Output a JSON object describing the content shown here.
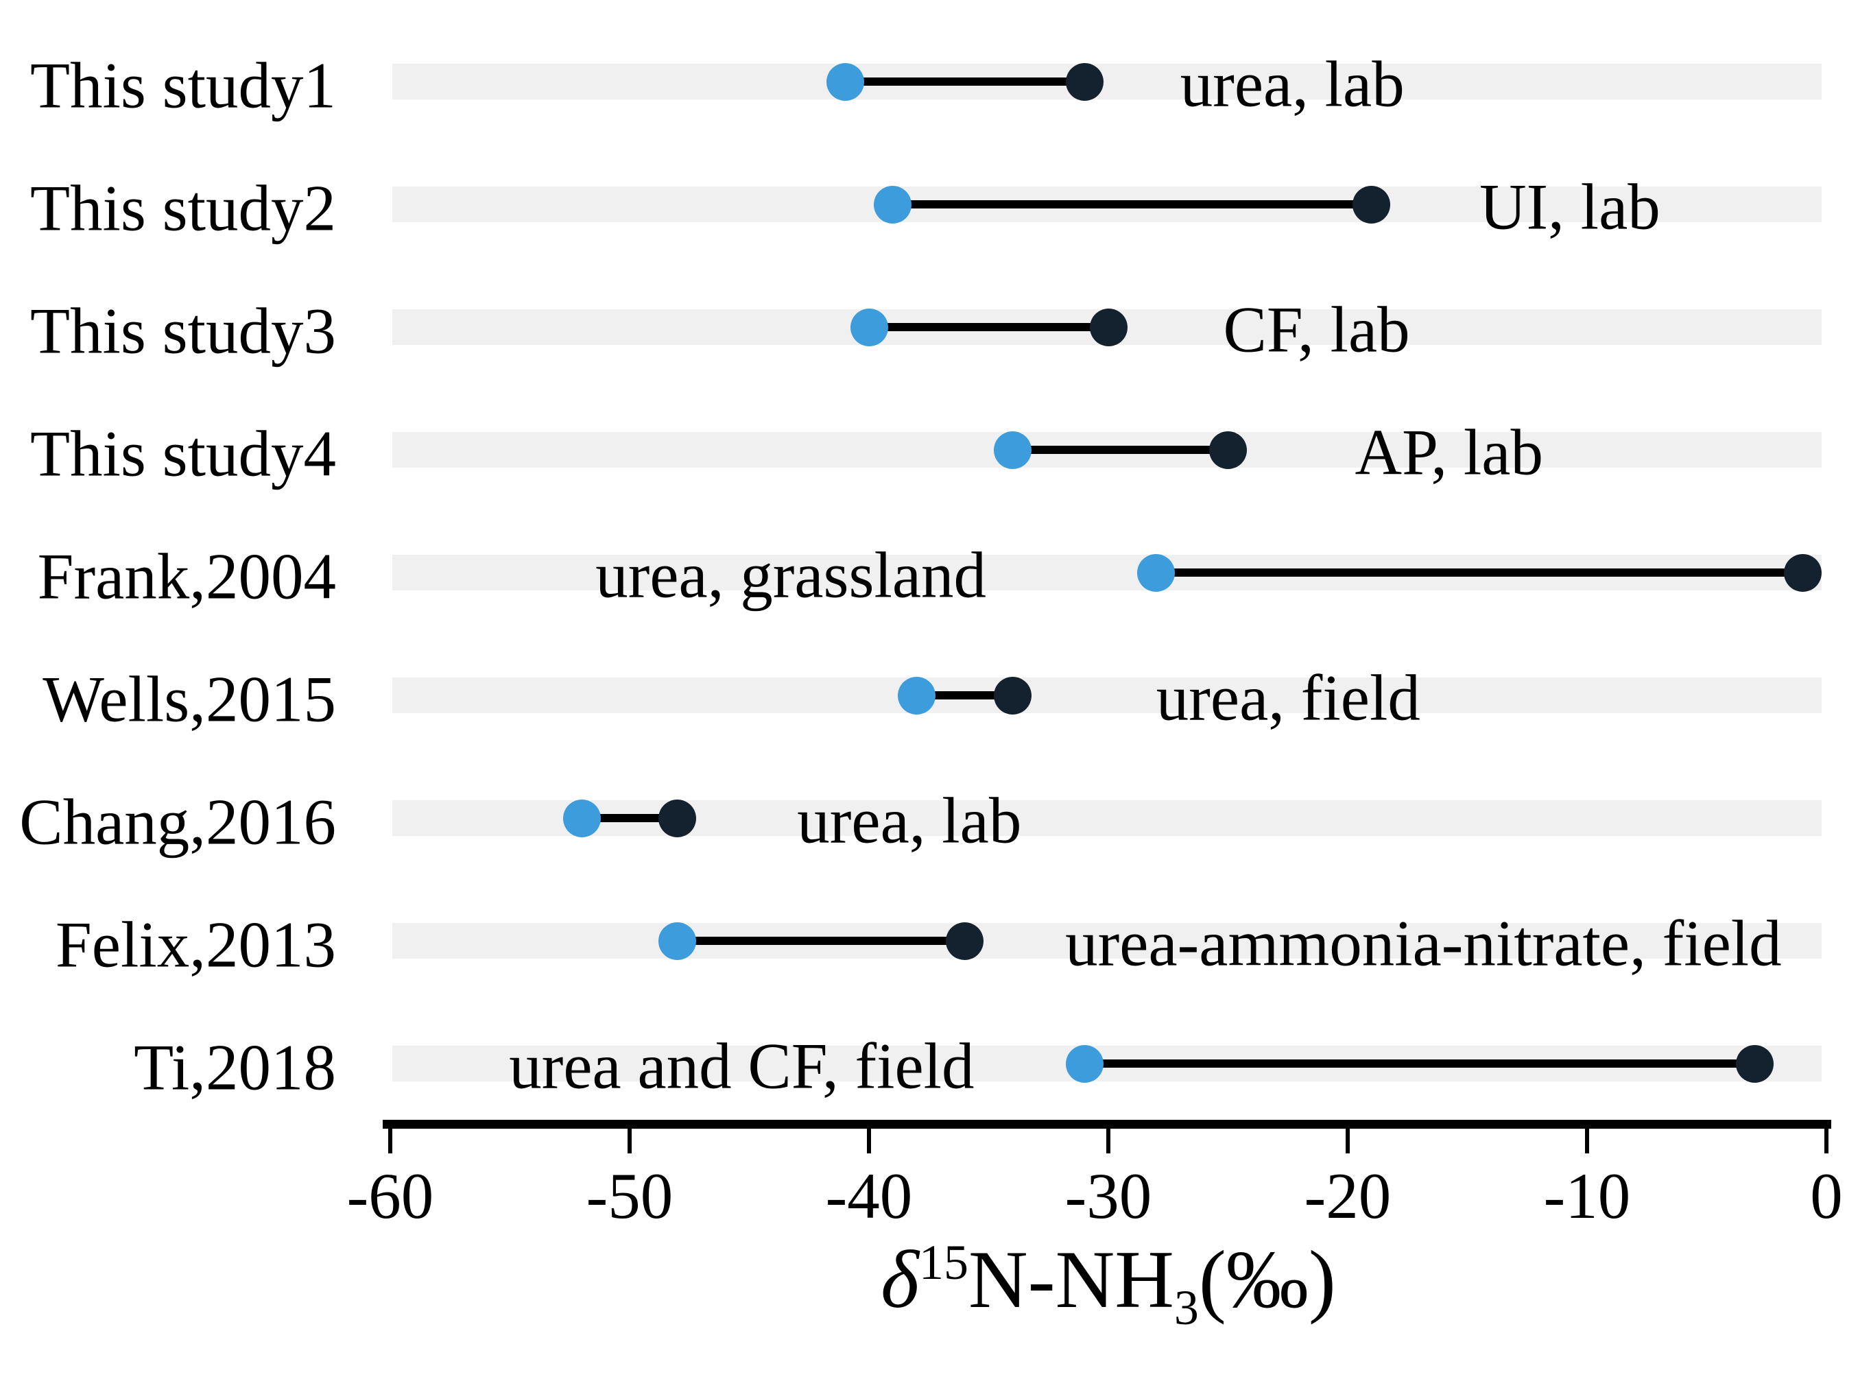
{
  "chart_data": {
    "type": "dumbbell",
    "orientation": "horizontal",
    "title": "",
    "x_axis": {
      "label_text": "δ15N-NH3(‰)",
      "label_parts": {
        "delta": "δ",
        "superscript": "15",
        "mid": "N-NH",
        "subscript": "3",
        "unit": "(‰)"
      },
      "min": -60,
      "max": 0,
      "tick_values": [
        -60,
        -50,
        -40,
        -30,
        -20,
        -10,
        0
      ],
      "tick_labels": [
        "-60",
        "-50",
        "-40",
        "-30",
        "-20",
        "-10",
        "0"
      ],
      "grid": "row-bands"
    },
    "colors": {
      "min_dot": "#3d9cdb",
      "max_dot": "#14212e",
      "connector": "#000000",
      "row_band": "#f0f0f0",
      "background": "#ffffff",
      "text": "#000000"
    },
    "rows": [
      {
        "study": "This study1",
        "low": -41,
        "high": -31,
        "label": "urea, lab",
        "label_side": "right",
        "label_anchor": -27.0
      },
      {
        "study": "This study2",
        "low": -39,
        "high": -19,
        "label": "UI, lab",
        "label_side": "right",
        "label_anchor": -14.5
      },
      {
        "study": "This study3",
        "low": -40,
        "high": -30,
        "label": "CF, lab",
        "label_side": "right",
        "label_anchor": -25.2
      },
      {
        "study": "This study4",
        "low": -34,
        "high": -25,
        "label": "AP, lab",
        "label_side": "right",
        "label_anchor": -19.7
      },
      {
        "study": "Frank,2004",
        "low": -28,
        "high": -1,
        "label": "urea, grassland",
        "label_side": "left",
        "label_anchor": -35.1
      },
      {
        "study": "Wells,2015",
        "low": -38,
        "high": -34,
        "label": "urea, field",
        "label_side": "right",
        "label_anchor": -28.0
      },
      {
        "study": "Chang,2016",
        "low": -52,
        "high": -48,
        "label": "urea, lab",
        "label_side": "right",
        "label_anchor": -43.0
      },
      {
        "study": "Felix,2013",
        "low": -48,
        "high": -36,
        "label": "urea-ammonia-nitrate, field",
        "label_side": "right",
        "label_anchor": -31.8
      },
      {
        "study": "Ti,2018",
        "low": -31,
        "high": -3,
        "label": "urea and CF, field",
        "label_side": "left",
        "label_anchor": -35.6
      }
    ]
  }
}
